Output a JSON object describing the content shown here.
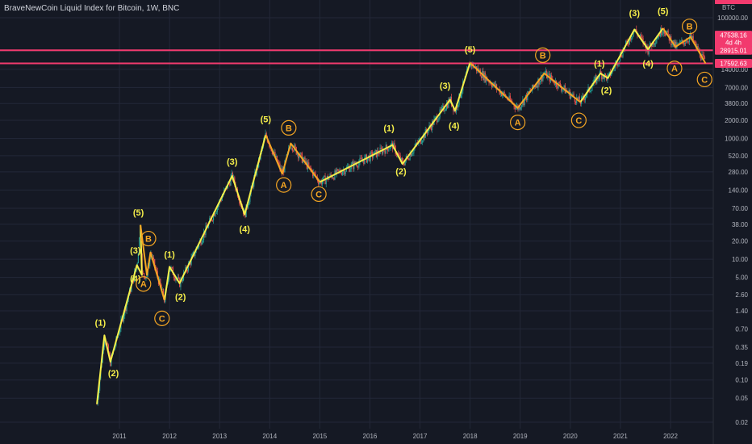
{
  "header": {
    "title": "BraveNewCoin Liquid Index for Bitcoin, 1W, BNC"
  },
  "colors": {
    "background": "#151924",
    "grid": "#232838",
    "impulse": "#f6ef4a",
    "corrective": "#f5a623",
    "level_line": "#f23a6e",
    "candle_up": "#26a69a",
    "candle_down": "#ef5350",
    "axis_text": "#b2b5be"
  },
  "chart_data": {
    "type": "line",
    "title": "BraveNewCoin Liquid Index for Bitcoin, 1W, BNC",
    "y_scale": "log",
    "ylim": [
      0.015,
      300000
    ],
    "xlim": [
      2010.0,
      2022.85
    ],
    "currency_label": "BTC",
    "y_ticks": [
      {
        "value": 100000,
        "label": "100000.00"
      },
      {
        "value": 28000,
        "label": "28000.00"
      },
      {
        "value": 14000,
        "label": "14000.00"
      },
      {
        "value": 7000,
        "label": "7000.00"
      },
      {
        "value": 3800,
        "label": "3800.00"
      },
      {
        "value": 2000,
        "label": "2000.00"
      },
      {
        "value": 1000,
        "label": "1000.00"
      },
      {
        "value": 520,
        "label": "520.00"
      },
      {
        "value": 280,
        "label": "280.00"
      },
      {
        "value": 140,
        "label": "140.00"
      },
      {
        "value": 70,
        "label": "70.00"
      },
      {
        "value": 38,
        "label": "38.00"
      },
      {
        "value": 20,
        "label": "20.00"
      },
      {
        "value": 10,
        "label": "10.00"
      },
      {
        "value": 5,
        "label": "5.00"
      },
      {
        "value": 2.6,
        "label": "2.60"
      },
      {
        "value": 1.4,
        "label": "1.40"
      },
      {
        "value": 0.7,
        "label": "0.70"
      },
      {
        "value": 0.35,
        "label": "0.35"
      },
      {
        "value": 0.19,
        "label": "0.19"
      },
      {
        "value": 0.1,
        "label": "0.10"
      },
      {
        "value": 0.05,
        "label": "0.05"
      },
      {
        "value": 0.02,
        "label": "0.02"
      }
    ],
    "x_ticks": [
      {
        "value": 2011,
        "label": "2011"
      },
      {
        "value": 2012,
        "label": "2012"
      },
      {
        "value": 2013,
        "label": "2013"
      },
      {
        "value": 2014,
        "label": "2014"
      },
      {
        "value": 2015,
        "label": "2015"
      },
      {
        "value": 2016,
        "label": "2016"
      },
      {
        "value": 2017,
        "label": "2017"
      },
      {
        "value": 2018,
        "label": "2018"
      },
      {
        "value": 2019,
        "label": "2019"
      },
      {
        "value": 2020,
        "label": "2020"
      },
      {
        "value": 2021,
        "label": "2021"
      },
      {
        "value": 2022,
        "label": "2022"
      }
    ],
    "price_tags": [
      {
        "value": 47538.16,
        "label": "47538.16",
        "sublabel": "4d 4h"
      },
      {
        "value": 28915.01,
        "label": "28915.01"
      },
      {
        "value": 17592.63,
        "label": "17592.63"
      }
    ],
    "horizontal_levels": [
      28915.01,
      17592.63
    ],
    "impulse_path": [
      [
        2010.55,
        0.04
      ],
      [
        2010.7,
        0.55
      ],
      [
        2010.82,
        0.2
      ],
      [
        2011.35,
        8
      ],
      [
        2011.45,
        5.5
      ],
      [
        2011.42,
        37
      ]
    ],
    "corrective_paths": [
      [
        [
          2011.42,
          37
        ],
        [
          2011.55,
          5.5
        ],
        [
          2011.62,
          13
        ],
        [
          2011.9,
          2.1
        ]
      ],
      [
        [
          2013.92,
          1150
        ],
        [
          2014.25,
          260
        ],
        [
          2014.42,
          830
        ],
        [
          2015.0,
          190
        ]
      ],
      [
        [
          2018.0,
          18000
        ],
        [
          2018.95,
          3200
        ],
        [
          2019.48,
          12000
        ],
        [
          2020.2,
          4000
        ]
      ],
      [
        [
          2021.85,
          67000
        ],
        [
          2022.1,
          33000
        ],
        [
          2022.4,
          48000
        ],
        [
          2022.7,
          17500
        ]
      ]
    ],
    "impulse_paths": [
      [
        [
          2010.55,
          0.04
        ],
        [
          2010.7,
          0.55
        ],
        [
          2010.82,
          0.2
        ],
        [
          2011.35,
          8
        ],
        [
          2011.45,
          5.5
        ],
        [
          2011.42,
          37
        ]
      ],
      [
        [
          2011.9,
          2.1
        ],
        [
          2012.0,
          7.5
        ],
        [
          2012.2,
          4.0
        ],
        [
          2013.25,
          240
        ],
        [
          2013.5,
          55
        ],
        [
          2013.92,
          1150
        ]
      ],
      [
        [
          2015.0,
          190
        ],
        [
          2016.45,
          780
        ],
        [
          2016.65,
          380
        ],
        [
          2017.6,
          4400
        ],
        [
          2017.7,
          2900
        ],
        [
          2018.0,
          18000
        ]
      ],
      [
        [
          2020.2,
          4000
        ],
        [
          2020.6,
          12000
        ],
        [
          2020.75,
          10000
        ],
        [
          2021.28,
          64000
        ],
        [
          2021.55,
          30000
        ],
        [
          2021.85,
          67000
        ]
      ]
    ],
    "wave_labels": [
      {
        "text": "(1)",
        "x": 2010.62,
        "y": 0.9,
        "kind": "impulse",
        "circled": false
      },
      {
        "text": "(2)",
        "x": 2010.88,
        "y": 0.13,
        "kind": "impulse",
        "circled": false
      },
      {
        "text": "(3)",
        "x": 2011.32,
        "y": 14,
        "kind": "impulse",
        "circled": false
      },
      {
        "text": "(4)",
        "x": 2011.32,
        "y": 4.8,
        "kind": "impulse",
        "circled": false
      },
      {
        "text": "(5)",
        "x": 2011.38,
        "y": 60,
        "kind": "impulse",
        "circled": false
      },
      {
        "text": "B",
        "x": 2011.58,
        "y": 22,
        "kind": "corrective",
        "circled": true
      },
      {
        "text": "A",
        "x": 2011.48,
        "y": 3.9,
        "kind": "corrective",
        "circled": true
      },
      {
        "text": "C",
        "x": 2011.85,
        "y": 1.05,
        "kind": "corrective",
        "circled": true
      },
      {
        "text": "(1)",
        "x": 2012.0,
        "y": 12,
        "kind": "impulse",
        "circled": false
      },
      {
        "text": "(2)",
        "x": 2012.22,
        "y": 2.4,
        "kind": "impulse",
        "circled": false
      },
      {
        "text": "(3)",
        "x": 2013.25,
        "y": 420,
        "kind": "impulse",
        "circled": false
      },
      {
        "text": "(4)",
        "x": 2013.5,
        "y": 32,
        "kind": "impulse",
        "circled": false
      },
      {
        "text": "(5)",
        "x": 2013.92,
        "y": 2100,
        "kind": "impulse",
        "circled": false
      },
      {
        "text": "B",
        "x": 2014.38,
        "y": 1500,
        "kind": "corrective",
        "circled": true
      },
      {
        "text": "A",
        "x": 2014.28,
        "y": 170,
        "kind": "corrective",
        "circled": true
      },
      {
        "text": "C",
        "x": 2014.98,
        "y": 120,
        "kind": "corrective",
        "circled": true
      },
      {
        "text": "(1)",
        "x": 2016.38,
        "y": 1500,
        "kind": "impulse",
        "circled": false
      },
      {
        "text": "(2)",
        "x": 2016.62,
        "y": 290,
        "kind": "impulse",
        "circled": false
      },
      {
        "text": "(3)",
        "x": 2017.5,
        "y": 7500,
        "kind": "impulse",
        "circled": false
      },
      {
        "text": "(4)",
        "x": 2017.68,
        "y": 1650,
        "kind": "impulse",
        "circled": false
      },
      {
        "text": "(5)",
        "x": 2018.0,
        "y": 30000,
        "kind": "impulse",
        "circled": false
      },
      {
        "text": "A",
        "x": 2018.95,
        "y": 1850,
        "kind": "corrective",
        "circled": true
      },
      {
        "text": "B",
        "x": 2019.45,
        "y": 24000,
        "kind": "corrective",
        "circled": true
      },
      {
        "text": "C",
        "x": 2020.17,
        "y": 2000,
        "kind": "corrective",
        "circled": true
      },
      {
        "text": "(1)",
        "x": 2020.58,
        "y": 17500,
        "kind": "impulse",
        "circled": false
      },
      {
        "text": "(2)",
        "x": 2020.72,
        "y": 6400,
        "kind": "impulse",
        "circled": false
      },
      {
        "text": "(3)",
        "x": 2021.28,
        "y": 120000,
        "kind": "impulse",
        "circled": false
      },
      {
        "text": "(4)",
        "x": 2021.55,
        "y": 17500,
        "kind": "impulse",
        "circled": false
      },
      {
        "text": "(5)",
        "x": 2021.85,
        "y": 130000,
        "kind": "impulse",
        "circled": false
      },
      {
        "text": "B",
        "x": 2022.38,
        "y": 72000,
        "kind": "corrective",
        "circled": true
      },
      {
        "text": "A",
        "x": 2022.08,
        "y": 14500,
        "kind": "corrective",
        "circled": true
      },
      {
        "text": "C",
        "x": 2022.68,
        "y": 9500,
        "kind": "corrective",
        "circled": true
      }
    ]
  }
}
